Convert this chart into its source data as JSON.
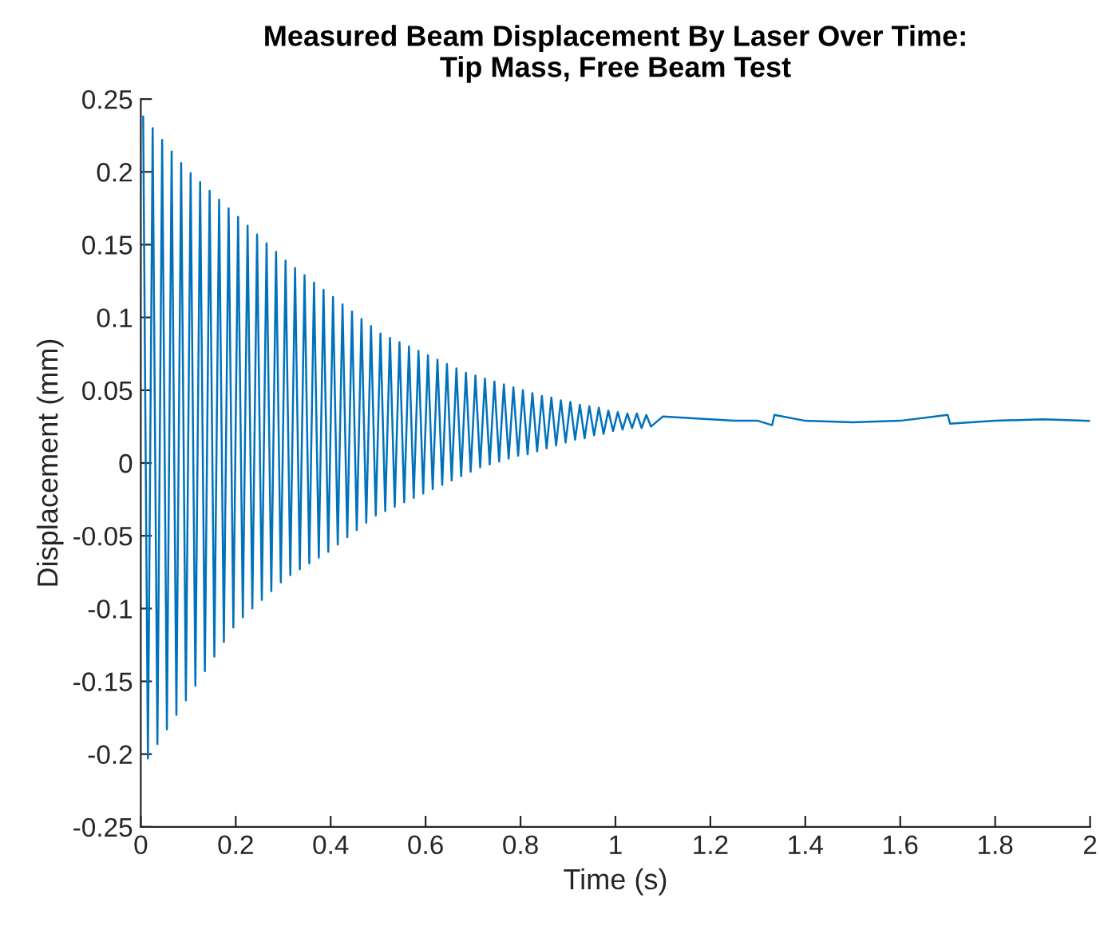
{
  "chart_data": {
    "type": "line",
    "title": "Measured Beam Displacement By Laser Over Time:\nTip Mass, Free Beam Test",
    "xlabel": "Time (s)",
    "ylabel": "Displacement (mm)",
    "series": [
      {
        "color": "#0072bd",
        "x": [
          0.005,
          0.015,
          0.025,
          0.035,
          0.045,
          0.055,
          0.065,
          0.075,
          0.085,
          0.095,
          0.105,
          0.115,
          0.125,
          0.135,
          0.145,
          0.155,
          0.165,
          0.175,
          0.185,
          0.195,
          0.205,
          0.215,
          0.225,
          0.235,
          0.245,
          0.255,
          0.265,
          0.275,
          0.285,
          0.295,
          0.305,
          0.315,
          0.325,
          0.335,
          0.345,
          0.355,
          0.365,
          0.375,
          0.385,
          0.395,
          0.405,
          0.415,
          0.425,
          0.435,
          0.445,
          0.455,
          0.465,
          0.475,
          0.485,
          0.495,
          0.505,
          0.515,
          0.525,
          0.535,
          0.545,
          0.555,
          0.565,
          0.575,
          0.585,
          0.595,
          0.605,
          0.615,
          0.625,
          0.635,
          0.645,
          0.655,
          0.665,
          0.675,
          0.685,
          0.695,
          0.705,
          0.715,
          0.725,
          0.735,
          0.745,
          0.755,
          0.765,
          0.775,
          0.785,
          0.795,
          0.805,
          0.815,
          0.825,
          0.835,
          0.845,
          0.855,
          0.865,
          0.875,
          0.885,
          0.895,
          0.905,
          0.915,
          0.925,
          0.935,
          0.945,
          0.955,
          0.965,
          0.975,
          0.985,
          0.995,
          1.005,
          1.015,
          1.025,
          1.035,
          1.045,
          1.055,
          1.065,
          1.075,
          1.1,
          1.15,
          1.2,
          1.25,
          1.3,
          1.33,
          1.335,
          1.4,
          1.5,
          1.6,
          1.7,
          1.705,
          1.8,
          1.9,
          2
        ],
        "values": [
          0.238,
          -0.203,
          0.23,
          -0.193,
          0.222,
          -0.183,
          0.214,
          -0.173,
          0.206,
          -0.163,
          0.199,
          -0.153,
          0.193,
          -0.143,
          0.187,
          -0.133,
          0.181,
          -0.123,
          0.175,
          -0.113,
          0.169,
          -0.106,
          0.163,
          -0.1,
          0.157,
          -0.094,
          0.151,
          -0.088,
          0.145,
          -0.082,
          0.139,
          -0.077,
          0.134,
          -0.073,
          0.129,
          -0.069,
          0.124,
          -0.065,
          0.119,
          -0.061,
          0.114,
          -0.056,
          0.109,
          -0.051,
          0.104,
          -0.046,
          0.099,
          -0.041,
          0.094,
          -0.036,
          0.089,
          -0.033,
          0.086,
          -0.03,
          0.083,
          -0.027,
          0.08,
          -0.024,
          0.077,
          -0.021,
          0.074,
          -0.018,
          0.071,
          -0.015,
          0.068,
          -0.012,
          0.065,
          -0.009,
          0.062,
          -0.006,
          0.06,
          -0.003,
          0.058,
          -0.001,
          0.056,
          0.001,
          0.054,
          0.003,
          0.052,
          0.005,
          0.05,
          0.006,
          0.048,
          0.008,
          0.046,
          0.01,
          0.045,
          0.012,
          0.043,
          0.014,
          0.042,
          0.016,
          0.04,
          0.017,
          0.039,
          0.019,
          0.038,
          0.02,
          0.036,
          0.022,
          0.035,
          0.023,
          0.034,
          0.024,
          0.034,
          0.024,
          0.033,
          0.025,
          0.032,
          0.031,
          0.03,
          0.029,
          0.029,
          0.026,
          0.033,
          0.029,
          0.028,
          0.029,
          0.033,
          0.027,
          0.029,
          0.03,
          0.029
        ]
      }
    ],
    "xlim": [
      0,
      2
    ],
    "xticks": [
      0,
      0.2,
      0.4,
      0.6,
      0.8,
      1,
      1.2,
      1.4,
      1.6,
      1.8,
      2
    ],
    "ylim": [
      -0.25,
      0.25
    ],
    "yticks": [
      -0.25,
      -0.2,
      -0.15,
      -0.1,
      -0.05,
      0,
      0.05,
      0.1,
      0.15,
      0.2,
      0.25
    ],
    "grid": false,
    "legend": false,
    "marker": "none",
    "line_style": "solid"
  }
}
